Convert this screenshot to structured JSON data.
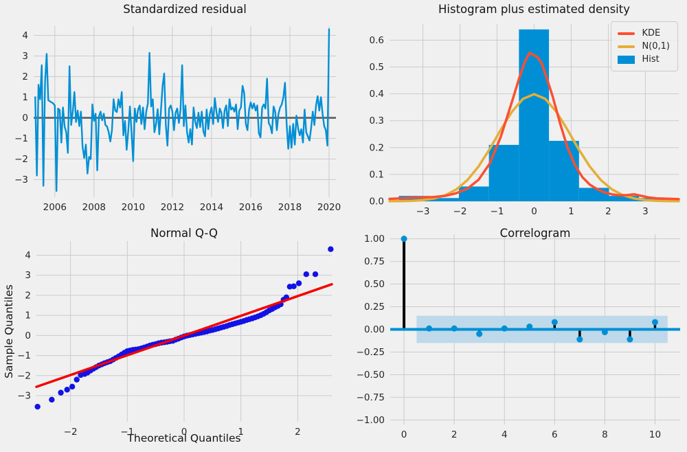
{
  "figure": {
    "background": "#f0f0f0",
    "grid_color": "#cbcbcb",
    "text_color": "#262626"
  },
  "chart_data": [
    {
      "type": "line",
      "title": "Standardized residual",
      "x_start": 2005.0,
      "x_step": 0.0833333,
      "values": [
        1.0,
        -2.8,
        1.6,
        0.9,
        2.55,
        -3.3,
        1.7,
        3.1,
        0.85,
        0.8,
        0.75,
        0.7,
        0.6,
        -3.55,
        0.45,
        0.38,
        -1.2,
        0.5,
        -0.42,
        -0.7,
        -1.7,
        2.5,
        -0.35,
        0.3,
        1.25,
        -0.2,
        0.35,
        -0.4,
        0.3,
        -1.4,
        -1.95,
        -1.3,
        -2.7,
        -1.9,
        -2.0,
        0.65,
        -0.15,
        0.2,
        -2.55,
        0.05,
        0.3,
        -0.12,
        0.2,
        -0.35,
        -0.42,
        -0.7,
        -1.15,
        -0.6,
        0.9,
        0.35,
        0.28,
        0.9,
        0.5,
        1.25,
        -0.85,
        -0.15,
        -1.55,
        -0.62,
        0.55,
        -0.7,
        -2.1,
        0.45,
        -0.2,
        0.4,
        0.6,
        -0.3,
        0.5,
        -0.55,
        0.3,
        0.7,
        3.15,
        0.55,
        0.9,
        -0.7,
        -0.3,
        0.42,
        -0.8,
        0.35,
        1.55,
        2.15,
        -0.35,
        -1.35,
        0.45,
        0.6,
        0.3,
        -0.6,
        0.25,
        0.45,
        -0.25,
        0.4,
        2.55,
        -0.4,
        0.6,
        -0.7,
        -1.2,
        -0.55,
        -1.3,
        0.5,
        -0.2,
        -0.5,
        0.25,
        -0.45,
        0.3,
        -0.65,
        -0.9,
        0.4,
        -0.55,
        0.2,
        0.5,
        -0.3,
        0.95,
        0.3,
        -0.2,
        0.45,
        0.25,
        -0.5,
        0.35,
        0.6,
        -0.4,
        0.9,
        0.4,
        0.5,
        0.3,
        0.65,
        -0.55,
        0.35,
        0.5,
        1.55,
        1.2,
        -0.3,
        -0.6,
        0.4,
        0.75,
        0.45,
        0.7,
        0.35,
        0.6,
        -0.75,
        -0.95,
        0.5,
        0.65,
        0.45,
        1.9,
        -0.25,
        -0.4,
        -0.75,
        0.55,
        0.3,
        -0.6,
        0.2,
        0.5,
        0.65,
        1.0,
        1.7,
        -0.3,
        -1.5,
        -0.4,
        -1.45,
        -0.3,
        -1.3,
        0.1,
        -0.5,
        -0.85,
        -0.55,
        -1.2,
        0.4,
        -0.7,
        -0.9,
        -1.1,
        -0.5,
        0.3,
        -0.35,
        0.6,
        1.05,
        0.35,
        1.0,
        0.2,
        -0.4,
        -0.6,
        -1.35,
        4.3
      ],
      "xlim": [
        2004.92,
        2020.35
      ],
      "ylim": [
        -3.85,
        4.45
      ],
      "xticks": {
        "values": [
          2006,
          2008,
          2010,
          2012,
          2014,
          2016,
          2018,
          2020
        ],
        "labels": [
          "2006",
          "2008",
          "2010",
          "2012",
          "2014",
          "2016",
          "2018",
          "2020"
        ]
      },
      "yticks": {
        "values": [
          -3,
          -2,
          -1,
          0,
          1,
          2,
          3,
          4
        ],
        "labels": [
          "−3",
          "−2",
          "−1",
          "0",
          "1",
          "2",
          "3",
          "4"
        ]
      },
      "line_color": "#008fd5",
      "zero_line_color": "#6e6e6e"
    },
    {
      "type": "histogram_density",
      "title": "Histogram plus estimated density",
      "bin_edges": [
        -3.65,
        -2.84,
        -2.03,
        -1.22,
        -0.41,
        0.4,
        1.21,
        2.02,
        2.83,
        3.64
      ],
      "bin_heights": [
        0.02,
        0.012,
        0.055,
        0.21,
        0.64,
        0.225,
        0.05,
        0.02,
        0.012
      ],
      "hist_color": "#008fd5",
      "kde": {
        "color": "#fc4f30",
        "x": [
          -3.9,
          -3.6,
          -3.3,
          -3.0,
          -2.7,
          -2.4,
          -2.1,
          -1.8,
          -1.5,
          -1.2,
          -0.9,
          -0.6,
          -0.4,
          -0.25,
          -0.12,
          -0.02,
          0.08,
          0.2,
          0.35,
          0.5,
          0.7,
          0.9,
          1.1,
          1.3,
          1.5,
          1.7,
          1.9,
          2.1,
          2.3,
          2.5,
          2.7,
          2.9,
          3.1,
          3.3,
          3.5,
          3.7,
          3.9
        ],
        "y": [
          0.009,
          0.011,
          0.013,
          0.014,
          0.016,
          0.02,
          0.03,
          0.047,
          0.08,
          0.14,
          0.24,
          0.37,
          0.46,
          0.52,
          0.553,
          0.545,
          0.538,
          0.515,
          0.455,
          0.39,
          0.29,
          0.2,
          0.135,
          0.09,
          0.062,
          0.045,
          0.033,
          0.026,
          0.022,
          0.023,
          0.026,
          0.02,
          0.014,
          0.011,
          0.01,
          0.009,
          0.008
        ]
      },
      "normal": {
        "color": "#e5ae38",
        "x": [
          -3.9,
          -3.6,
          -3.3,
          -3.0,
          -2.7,
          -2.4,
          -2.1,
          -1.8,
          -1.5,
          -1.2,
          -0.9,
          -0.6,
          -0.3,
          0,
          0.3,
          0.6,
          0.9,
          1.2,
          1.5,
          1.8,
          2.1,
          2.4,
          2.7,
          3.0,
          3.3,
          3.6,
          3.9
        ],
        "y": [
          0.0002,
          0.0006,
          0.0017,
          0.0044,
          0.0104,
          0.0224,
          0.044,
          0.079,
          0.1295,
          0.1942,
          0.2661,
          0.3332,
          0.3814,
          0.3989,
          0.3814,
          0.3332,
          0.2661,
          0.1942,
          0.1295,
          0.079,
          0.044,
          0.0224,
          0.0104,
          0.0044,
          0.0017,
          0.0006,
          0.0002
        ]
      },
      "xlim": [
        -3.9,
        3.9
      ],
      "ylim": [
        0,
        0.66
      ],
      "xticks": {
        "values": [
          -3,
          -2,
          -1,
          0,
          1,
          2,
          3
        ],
        "labels": [
          "−3",
          "−2",
          "−1",
          "0",
          "1",
          "2",
          "3"
        ]
      },
      "yticks": {
        "values": [
          0,
          0.1,
          0.2,
          0.3,
          0.4,
          0.5,
          0.6
        ],
        "labels": [
          "0.0",
          "0.1",
          "0.2",
          "0.3",
          "0.4",
          "0.5",
          "0.6"
        ]
      },
      "legend": [
        {
          "label": "KDE",
          "swatch": "line",
          "color": "#fc4f30"
        },
        {
          "label": "N(0,1)",
          "swatch": "line",
          "color": "#e5ae38"
        },
        {
          "label": "Hist",
          "swatch": "patch",
          "color": "#008fd5"
        }
      ]
    },
    {
      "type": "qq",
      "title": "Normal Q-Q",
      "xlabel": "Theoretical Quantiles",
      "ylabel": "Sample Quantiles",
      "point_color": "#1212e6",
      "ref_line": {
        "x1": -2.6,
        "y1": -2.56,
        "x2": 2.6,
        "y2": 2.55,
        "color": "#f40000"
      },
      "points": [
        [
          -2.58,
          -3.55
        ],
        [
          -2.33,
          -3.2
        ],
        [
          -2.17,
          -2.85
        ],
        [
          -2.06,
          -2.7
        ],
        [
          -1.97,
          -2.55
        ],
        [
          -1.89,
          -2.2
        ],
        [
          -1.82,
          -1.97
        ],
        [
          -1.75,
          -1.92
        ],
        [
          -1.7,
          -1.85
        ],
        [
          -1.65,
          -1.75
        ],
        [
          -1.6,
          -1.66
        ],
        [
          -1.55,
          -1.58
        ],
        [
          -1.5,
          -1.5
        ],
        [
          -1.45,
          -1.44
        ],
        [
          -1.4,
          -1.38
        ],
        [
          -1.35,
          -1.33
        ],
        [
          -1.3,
          -1.28
        ],
        [
          -1.25,
          -1.2
        ],
        [
          -1.2,
          -1.12
        ],
        [
          -1.15,
          -1.04
        ],
        [
          -1.1,
          -0.95
        ],
        [
          -1.05,
          -0.86
        ],
        [
          -1.0,
          -0.78
        ],
        [
          -0.95,
          -0.75
        ],
        [
          -0.9,
          -0.72
        ],
        [
          -0.85,
          -0.7
        ],
        [
          -0.8,
          -0.68
        ],
        [
          -0.75,
          -0.64
        ],
        [
          -0.7,
          -0.6
        ],
        [
          -0.65,
          -0.55
        ],
        [
          -0.6,
          -0.5
        ],
        [
          -0.55,
          -0.46
        ],
        [
          -0.5,
          -0.43
        ],
        [
          -0.45,
          -0.39
        ],
        [
          -0.4,
          -0.36
        ],
        [
          -0.35,
          -0.34
        ],
        [
          -0.3,
          -0.32
        ],
        [
          -0.25,
          -0.29
        ],
        [
          -0.2,
          -0.27
        ],
        [
          -0.15,
          -0.21
        ],
        [
          -0.1,
          -0.16
        ],
        [
          -0.05,
          -0.1
        ],
        [
          0,
          -0.05
        ],
        [
          0.05,
          -0.01
        ],
        [
          0.1,
          0.02
        ],
        [
          0.15,
          0.05
        ],
        [
          0.2,
          0.08
        ],
        [
          0.25,
          0.11
        ],
        [
          0.3,
          0.14
        ],
        [
          0.35,
          0.17
        ],
        [
          0.4,
          0.2
        ],
        [
          0.45,
          0.24
        ],
        [
          0.5,
          0.27
        ],
        [
          0.55,
          0.31
        ],
        [
          0.6,
          0.35
        ],
        [
          0.65,
          0.39
        ],
        [
          0.7,
          0.43
        ],
        [
          0.75,
          0.47
        ],
        [
          0.8,
          0.52
        ],
        [
          0.85,
          0.56
        ],
        [
          0.9,
          0.6
        ],
        [
          0.95,
          0.64
        ],
        [
          1.0,
          0.68
        ],
        [
          1.05,
          0.72
        ],
        [
          1.1,
          0.77
        ],
        [
          1.15,
          0.81
        ],
        [
          1.2,
          0.85
        ],
        [
          1.25,
          0.9
        ],
        [
          1.3,
          0.95
        ],
        [
          1.35,
          1.01
        ],
        [
          1.4,
          1.08
        ],
        [
          1.45,
          1.16
        ],
        [
          1.5,
          1.25
        ],
        [
          1.55,
          1.32
        ],
        [
          1.6,
          1.4
        ],
        [
          1.65,
          1.47
        ],
        [
          1.7,
          1.55
        ],
        [
          1.75,
          1.78
        ],
        [
          1.8,
          1.9
        ],
        [
          1.86,
          2.43
        ],
        [
          1.93,
          2.45
        ],
        [
          2.02,
          2.6
        ],
        [
          2.15,
          3.05
        ],
        [
          2.31,
          3.05
        ],
        [
          2.58,
          4.3
        ]
      ],
      "xlim": [
        -2.6,
        2.6
      ],
      "ylim": [
        -4.3,
        4.7
      ],
      "xticks": {
        "values": [
          -2,
          -1,
          0,
          1,
          2
        ],
        "labels": [
          "−2",
          "−1",
          "0",
          "1",
          "2"
        ]
      },
      "yticks": {
        "values": [
          -3,
          -2,
          -1,
          0,
          1,
          2,
          3,
          4
        ],
        "labels": [
          "−3",
          "−2",
          "−1",
          "0",
          "1",
          "2",
          "3",
          "4"
        ]
      }
    },
    {
      "type": "correlogram",
      "title": "Correlogram",
      "lags": [
        0,
        1,
        2,
        3,
        4,
        5,
        6,
        7,
        8,
        9,
        10
      ],
      "acf": [
        1.0,
        0.01,
        0.01,
        -0.05,
        0.01,
        0.03,
        0.08,
        -0.11,
        -0.03,
        -0.11,
        0.08
      ],
      "conf_band": {
        "x0": 0.5,
        "x1": 10.5,
        "lo": -0.15,
        "hi": 0.15,
        "color": "#bdd9ea"
      },
      "stem_color": "#000000",
      "dot_color": "#008fd5",
      "zero_line_color": "#008fd5",
      "xlim": [
        -0.55,
        11.0
      ],
      "ylim": [
        -1.05,
        1.05
      ],
      "xticks": {
        "values": [
          0,
          2,
          4,
          6,
          8,
          10
        ],
        "labels": [
          "0",
          "2",
          "4",
          "6",
          "8",
          "10"
        ]
      },
      "yticks": {
        "values": [
          -1,
          -0.75,
          -0.5,
          -0.25,
          0,
          0.25,
          0.5,
          0.75,
          1
        ],
        "labels": [
          "−1.00",
          "−0.75",
          "−0.50",
          "−0.25",
          "0.00",
          "0.25",
          "0.50",
          "0.75",
          "1.00"
        ]
      }
    }
  ]
}
